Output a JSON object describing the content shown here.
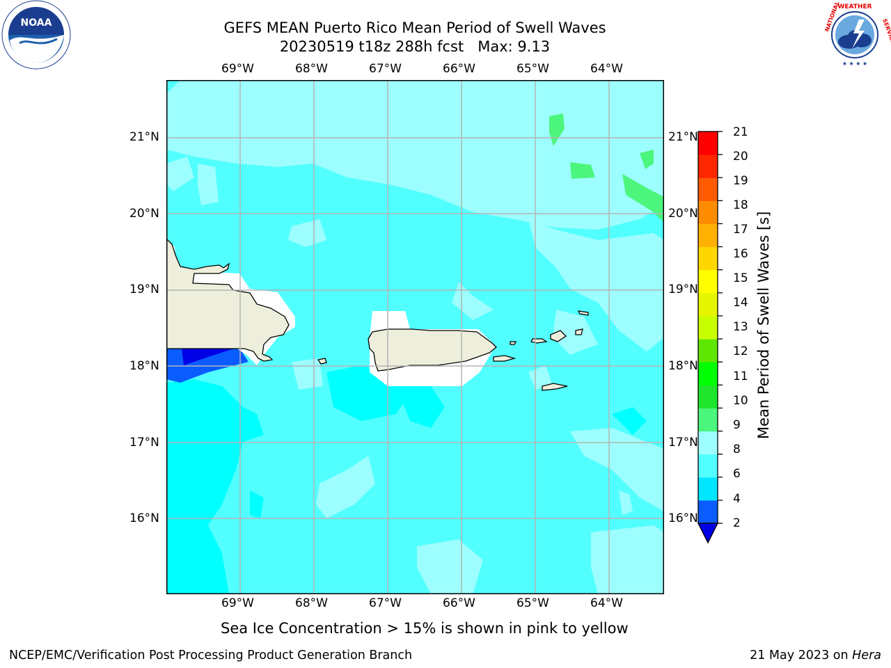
{
  "title": {
    "line1": "GEFS MEAN Puerto Rico Mean Period of Swell Waves",
    "line2": "20230519 t18z 288h fcst   Max: 9.13"
  },
  "logos": {
    "noaa_text": "NOAA",
    "noaa_ring": "NATIONAL OCEANIC AND ATMOSPHERIC ADMINISTRATION · U.S. DEPARTMENT OF COMMERCE",
    "nws_ring": "NATIONAL WEATHER SERVICE"
  },
  "map": {
    "lon_ticks": [
      "69°W",
      "68°W",
      "67°W",
      "66°W",
      "65°W",
      "64°W"
    ],
    "lat_ticks": [
      "21°N",
      "20°N",
      "19°N",
      "18°N",
      "17°N",
      "16°N"
    ],
    "lon_values": [
      -69,
      -68,
      -67,
      -66,
      -65,
      -64
    ],
    "lat_values": [
      21,
      20,
      19,
      18,
      17,
      16
    ],
    "lon_range": [
      -70.0,
      -63.25
    ],
    "lat_range": [
      15.0,
      21.75
    ],
    "grid": true
  },
  "colorbar": {
    "label": "Mean Period of Swell Waves [s]",
    "ticks": [
      "21",
      "20",
      "19",
      "18",
      "17",
      "16",
      "15",
      "14",
      "13",
      "12",
      "11",
      "10",
      "9",
      "8",
      "6",
      "4",
      "2"
    ],
    "levels": [
      2,
      4,
      6,
      8,
      9,
      10,
      11,
      12,
      13,
      14,
      15,
      16,
      17,
      18,
      19,
      20,
      21
    ],
    "colors": [
      "#0a5cff",
      "#00e6ff",
      "#52ffff",
      "#9dfeff",
      "#4cf57c",
      "#1fe62c",
      "#00ff00",
      "#5fe600",
      "#c8ff00",
      "#e6f500",
      "#ffff00",
      "#ffd700",
      "#ffb000",
      "#ff8c00",
      "#ff5a00",
      "#ff2600",
      "#ff0000"
    ],
    "extend_color": "#0000e6"
  },
  "colors": {
    "land": "#eeeedc",
    "sea_main": "#52ffff",
    "sea_light": "#9dfeff",
    "sea_bright": "#00ffff",
    "grid": "#b4b4b4"
  },
  "subtitle": "Sea Ice Concentration > 15% is shown in pink to yellow",
  "footer": {
    "left": "NCEP/EMC/Verification Post Processing Product Generation Branch",
    "right_date": "21 May 2023 on ",
    "right_host": "Hera"
  }
}
